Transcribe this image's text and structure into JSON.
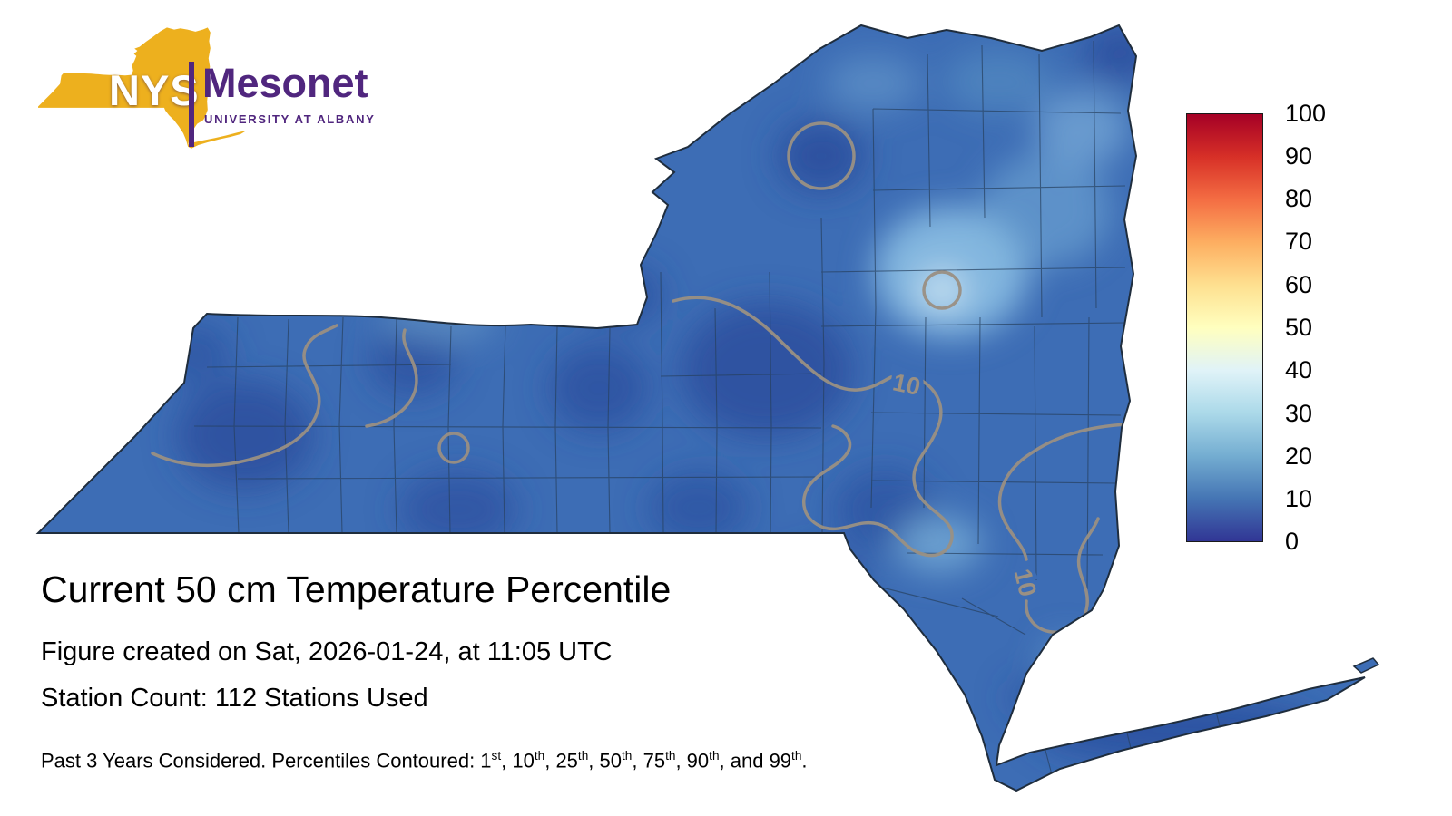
{
  "logo": {
    "acronym": "NYS",
    "name": "Mesonet",
    "subtitle": "UNIVERSITY AT ALBANY",
    "gold": "#EDB01E",
    "purple": "#50267E"
  },
  "title": "Current 50 cm Temperature Percentile",
  "created_line": "Figure created on Sat, 2026-01-24, at 11:05 UTC",
  "station_line": "Station Count: 112 Stations Used",
  "footnote_segments": [
    {
      "t": "Past 3 Years Considered. Percentiles Contoured: 1"
    },
    {
      "t": "st",
      "sup": true
    },
    {
      "t": ", 10"
    },
    {
      "t": "th",
      "sup": true
    },
    {
      "t": ", 25"
    },
    {
      "t": "th",
      "sup": true
    },
    {
      "t": ", 50"
    },
    {
      "t": "th",
      "sup": true
    },
    {
      "t": ", 75"
    },
    {
      "t": "th",
      "sup": true
    },
    {
      "t": ", 90"
    },
    {
      "t": "th",
      "sup": true
    },
    {
      "t": ", and 99"
    },
    {
      "t": "th",
      "sup": true
    },
    {
      "t": "."
    }
  ],
  "map": {
    "contour_label": "10",
    "base_color": "#3D6DB5",
    "outline_color": "#1F2D3D",
    "county_line_color": "#27405E",
    "contour_color": "#9A9083"
  },
  "colorbar": {
    "min": 0,
    "max": 100,
    "ticks": [
      "100",
      "90",
      "80",
      "70",
      "60",
      "50",
      "40",
      "30",
      "20",
      "10",
      "0"
    ],
    "colors_top_to_bottom": [
      "#A50026",
      "#D73027",
      "#F46D43",
      "#FDAE61",
      "#FEE090",
      "#FFFFBF",
      "#E0F3F8",
      "#ABD9E9",
      "#74ADD1",
      "#4575B4",
      "#313695"
    ]
  },
  "chart_data": {
    "type": "heatmap",
    "title": "Current 50 cm Temperature Percentile",
    "colorbar_range": [
      0,
      100
    ],
    "colorbar_tick_interval": 10,
    "contour_levels_percentile": [
      1,
      10,
      25,
      50,
      75,
      90,
      99
    ],
    "visible_contour_labels": [
      "10",
      "10"
    ],
    "value_summary": "Statewide values shown mostly in the 0-40 percentile range (blue shades), lightest in the Adirondack region"
  }
}
